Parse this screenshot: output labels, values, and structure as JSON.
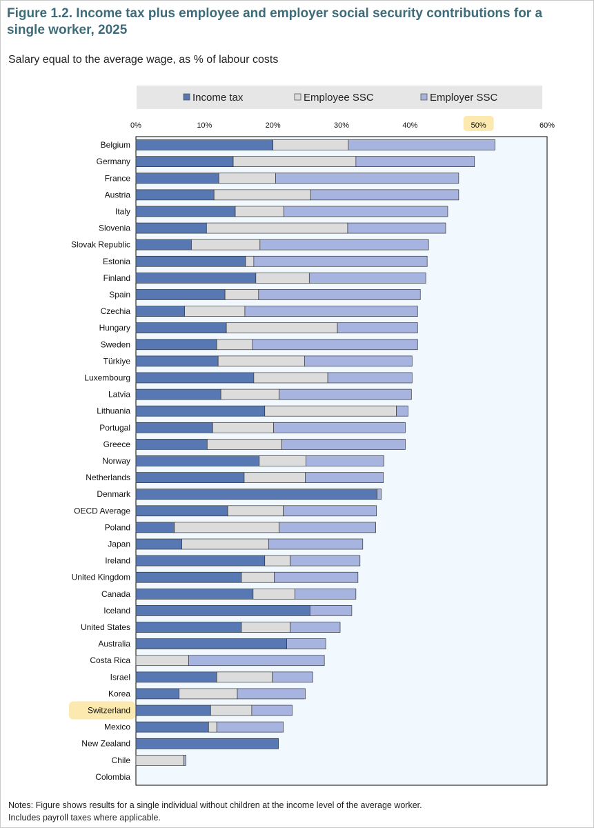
{
  "figure": {
    "title": "Figure 1.2. Income tax plus employee and employer social security contributions for a single worker, 2025",
    "subtitle": "Salary equal to the average wage, as % of labour costs",
    "notes_line1": "Notes: Figure shows results for a single individual without children at the income level of the average worker.",
    "notes_line2": "Includes payroll taxes where applicable."
  },
  "colors": {
    "income_tax": "#5878b4",
    "employee_ssc": "#dcdcdc",
    "employer_ssc": "#a8b4e0",
    "plot_bg": "#f2f9fe",
    "legend_bg": "#e6e6e6",
    "highlight": "#fbe9b0"
  },
  "highlights": [
    "Switzerland",
    "50%"
  ],
  "chart_data": {
    "type": "bar",
    "orientation": "horizontal",
    "stacked": true,
    "xlim": [
      0,
      60
    ],
    "xticks": [
      "0%",
      "10%",
      "20%",
      "30%",
      "40%",
      "50%",
      "60%"
    ],
    "legend_position": "top",
    "categories": [
      "Belgium",
      "Germany",
      "France",
      "Austria",
      "Italy",
      "Slovenia",
      "Slovak Republic",
      "Estonia",
      "Finland",
      "Spain",
      "Czechia",
      "Hungary",
      "Sweden",
      "Türkiye",
      "Luxembourg",
      "Latvia",
      "Lithuania",
      "Portugal",
      "Greece",
      "Norway",
      "Netherlands",
      "Denmark",
      "OECD Average",
      "Poland",
      "Japan",
      "Ireland",
      "United Kingdom",
      "Canada",
      "Iceland",
      "United States",
      "Australia",
      "Costa Rica",
      "Israel",
      "Korea",
      "Switzerland",
      "Mexico",
      "New Zealand",
      "Chile",
      "Colombia"
    ],
    "series": [
      {
        "name": "Income tax",
        "key": "income_tax",
        "values": [
          20.0,
          14.2,
          12.1,
          11.4,
          14.5,
          10.3,
          8.1,
          16.0,
          17.5,
          13.0,
          7.1,
          13.2,
          11.8,
          12.0,
          17.2,
          12.4,
          18.8,
          11.2,
          10.4,
          18.0,
          15.8,
          35.2,
          13.4,
          5.6,
          6.7,
          18.8,
          15.4,
          17.1,
          25.4,
          15.4,
          22.0,
          0.0,
          11.8,
          6.3,
          10.9,
          10.6,
          20.8,
          0.0,
          0.0
        ]
      },
      {
        "name": "Employee SSC",
        "key": "employee_ssc",
        "values": [
          11.0,
          17.9,
          8.3,
          14.1,
          7.1,
          20.6,
          10.0,
          1.2,
          7.8,
          4.9,
          8.8,
          16.2,
          5.2,
          12.6,
          10.8,
          8.5,
          19.2,
          8.9,
          10.9,
          6.8,
          8.9,
          0.0,
          8.1,
          15.3,
          12.7,
          3.7,
          4.8,
          6.1,
          0.0,
          7.1,
          0.0,
          7.7,
          8.1,
          8.5,
          6.0,
          1.2,
          0.0,
          7.0,
          0.0
        ]
      },
      {
        "name": "Employer SSC",
        "key": "employer_ssc",
        "values": [
          21.4,
          17.3,
          26.7,
          21.6,
          23.9,
          14.3,
          24.6,
          25.3,
          17.0,
          23.6,
          25.2,
          11.7,
          24.1,
          15.7,
          12.3,
          19.3,
          1.7,
          19.2,
          18.0,
          11.4,
          11.4,
          0.6,
          13.6,
          14.1,
          13.7,
          10.2,
          12.2,
          8.9,
          6.1,
          7.3,
          5.7,
          19.8,
          5.9,
          9.9,
          5.9,
          9.7,
          0.0,
          0.3,
          0.0
        ]
      }
    ]
  }
}
